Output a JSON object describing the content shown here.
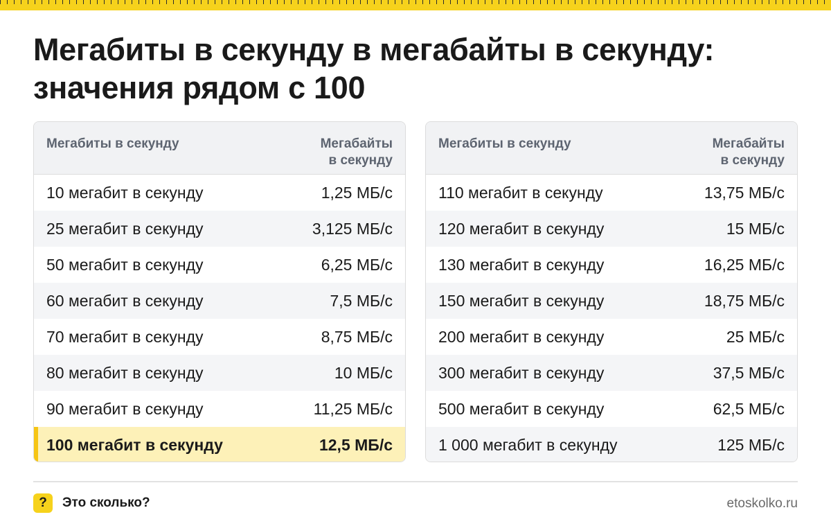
{
  "title": "Мегабиты в секунду в мегабайты в секунду:\nзначения рядом с 100",
  "colors": {
    "accent": "#f6d21c",
    "highlight": "#fdf1b8",
    "header_bg": "#f1f2f4"
  },
  "header": {
    "col1": "Мегабиты в секунду",
    "col2": "Мегабайты\nв секунду"
  },
  "left_table": [
    {
      "mbit": "10 мегабит в секунду",
      "mbyte": "1,25 МБ/с"
    },
    {
      "mbit": "25 мегабит в секунду",
      "mbyte": "3,125 МБ/с"
    },
    {
      "mbit": "50 мегабит в секунду",
      "mbyte": "6,25 МБ/с"
    },
    {
      "mbit": "60 мегабит в секунду",
      "mbyte": "7,5 МБ/с"
    },
    {
      "mbit": "70 мегабит в секунду",
      "mbyte": "8,75 МБ/с"
    },
    {
      "mbit": "80 мегабит в секунду",
      "mbyte": "10 МБ/с"
    },
    {
      "mbit": "90 мегабит в секунду",
      "mbyte": "11,25 МБ/с"
    },
    {
      "mbit": "100 мегабит в секунду",
      "mbyte": "12,5 МБ/с"
    }
  ],
  "right_table": [
    {
      "mbit": "110 мегабит в секунду",
      "mbyte": "13,75 МБ/с"
    },
    {
      "mbit": "120 мегабит в секунду",
      "mbyte": "15 МБ/с"
    },
    {
      "mbit": "130 мегабит в секунду",
      "mbyte": "16,25 МБ/с"
    },
    {
      "mbit": "150 мегабит в секунду",
      "mbyte": "18,75 МБ/с"
    },
    {
      "mbit": "200 мегабит в секунду",
      "mbyte": "25 МБ/с"
    },
    {
      "mbit": "300 мегабит в секунду",
      "mbyte": "37,5 МБ/с"
    },
    {
      "mbit": "500 мегабит в секунду",
      "mbyte": "62,5 МБ/с"
    },
    {
      "mbit": "1 000 мегабит в секунду",
      "mbyte": "125 МБ/с"
    }
  ],
  "highlighted_row": "100 мегабит в секунду",
  "footer": {
    "icon_symbol": "?",
    "icon_name": "question-icon",
    "brand": "Это сколько?",
    "site": "etoskolko.ru"
  }
}
